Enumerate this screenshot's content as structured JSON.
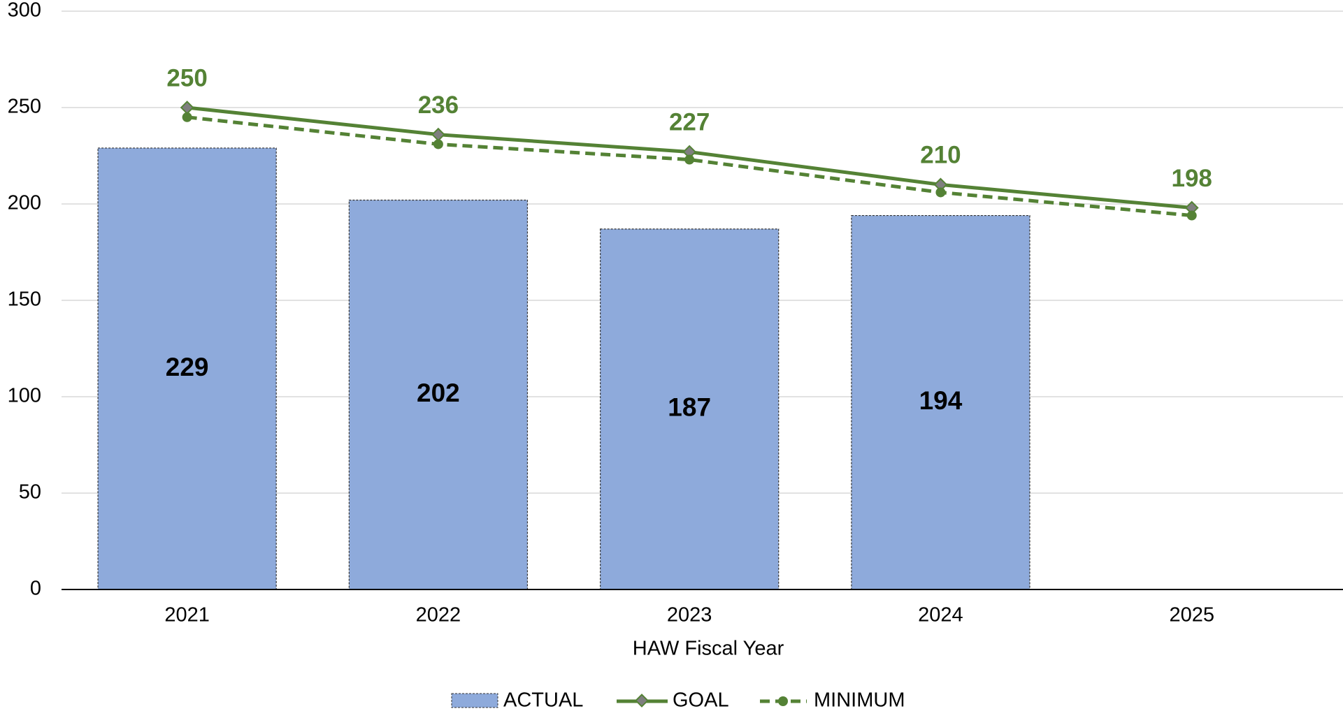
{
  "chart_data": {
    "type": "bar_line",
    "x_label": "HAW Fiscal Year",
    "categories": [
      "2021",
      "2022",
      "2023",
      "2024",
      "2025"
    ],
    "series": [
      {
        "name": "ACTUAL",
        "type": "bar",
        "color": "#8eaadb",
        "values": [
          229,
          202,
          187,
          194,
          null
        ]
      },
      {
        "name": "GOAL",
        "type": "line",
        "color": "#548235",
        "marker": "diamond",
        "values": [
          250,
          236,
          227,
          210,
          198
        ]
      },
      {
        "name": "MINIMUM",
        "type": "line",
        "color": "#548235",
        "marker": "circle",
        "dashed": true,
        "values": [
          245,
          231,
          223,
          206,
          194
        ]
      }
    ],
    "ylim": [
      0,
      300
    ],
    "yticks": [
      0,
      50,
      100,
      150,
      200,
      250,
      300
    ],
    "grid": true,
    "legend": "bottom"
  }
}
